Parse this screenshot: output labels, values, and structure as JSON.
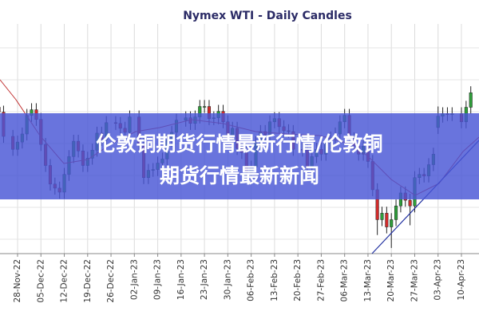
{
  "chart_data": {
    "type": "candlestick",
    "title": "Nymex WTI - Daily Candles",
    "categories": [
      null,
      null,
      null,
      null,
      "28-Nov-22",
      null,
      null,
      null,
      null,
      "05-Dec-22",
      null,
      null,
      null,
      null,
      "12-Dec-22",
      null,
      null,
      null,
      null,
      "19-Dec-22",
      null,
      null,
      null,
      null,
      "26-Dec-22",
      null,
      null,
      null,
      null,
      "02-Jan-23",
      null,
      null,
      null,
      null,
      "09-Jan-23",
      null,
      null,
      null,
      null,
      "16-Jan-23",
      null,
      null,
      null,
      null,
      "23-Jan-23",
      null,
      null,
      null,
      null,
      "30-Jan-23",
      null,
      null,
      null,
      null,
      "06-Feb-23",
      null,
      null,
      null,
      null,
      "13-Feb-23",
      null,
      null,
      null,
      null,
      "20-Feb-23",
      null,
      null,
      null,
      null,
      "27-Feb-23",
      null,
      null,
      null,
      null,
      "06-Mar-23",
      null,
      null,
      null,
      null,
      "13-Mar-23",
      null,
      null,
      null,
      null,
      "20-Mar-23",
      null,
      null,
      null,
      null,
      "27-Mar-23",
      null,
      null,
      null,
      null,
      "03-Apr-23",
      null,
      null,
      null,
      null,
      "10-Apr-23",
      null,
      null
    ],
    "open": [
      81.5,
      80.9,
      null,
      77.9,
      76.3,
      77.2,
      78.2,
      80.5,
      81.2,
      80.0,
      76.9,
      74.3,
      72.0,
      71.5,
      71.0,
      73.2,
      75.4,
      77.3,
      76.1,
      74.3,
      75.2,
      76.2,
      78.3,
      77.5,
      null,
      79.6,
      79.5,
      78.9,
      78.4,
      null,
      80.3,
      76.9,
      72.8,
      73.7,
      73.8,
      74.6,
      75.1,
      77.4,
      78.4,
      null,
      79.9,
      80.2,
      79.5,
      80.3,
      81.6,
      81.6,
      80.1,
      80.2,
      81.0,
      79.7,
      77.9,
      78.9,
      76.4,
      75.9,
      73.4,
      74.1,
      77.1,
      78.5,
      78.1,
      79.7,
      80.1,
      79.1,
      78.6,
      78.5,
      null,
      76.3,
      76.2,
      74.0,
      75.4,
      76.3,
      75.7,
      77.1,
      77.7,
      78.2,
      79.7,
      80.5,
      77.6,
      76.7,
      75.7,
      76.7,
      74.8,
      71.3,
      67.6,
      68.4,
      66.7,
      67.6,
      69.3,
      70.9,
      70.0,
      69.3,
      72.8,
      73.2,
      73.0,
      74.4,
      79.0,
      80.4,
      80.7,
      80.6,
      null,
      80.7,
      79.7,
      81.5
    ],
    "high": [
      82.3,
      81.7,
      null,
      78.7,
      78.0,
      79.0,
      81.3,
      82.0,
      82.0,
      80.8,
      77.7,
      75.1,
      72.8,
      72.3,
      74.0,
      76.2,
      78.1,
      78.1,
      76.9,
      76.0,
      77.0,
      79.1,
      79.1,
      80.4,
      null,
      80.4,
      80.3,
      79.7,
      81.1,
      null,
      81.1,
      77.7,
      74.5,
      74.6,
      75.4,
      75.9,
      78.2,
      79.2,
      80.7,
      null,
      81.0,
      81.0,
      81.1,
      82.4,
      82.4,
      82.4,
      81.0,
      81.8,
      81.8,
      80.5,
      79.7,
      79.7,
      77.2,
      76.7,
      74.9,
      77.9,
      79.3,
      79.3,
      80.5,
      80.9,
      80.9,
      79.9,
      79.4,
      79.3,
      null,
      77.1,
      77.0,
      76.2,
      77.1,
      77.1,
      77.9,
      78.5,
      79.0,
      80.5,
      81.3,
      81.3,
      78.4,
      77.5,
      77.5,
      77.5,
      75.6,
      72.1,
      69.2,
      69.2,
      68.4,
      70.1,
      71.7,
      71.7,
      70.8,
      73.6,
      74.0,
      74.0,
      75.2,
      76.5,
      81.6,
      81.5,
      81.5,
      81.5,
      null,
      81.5,
      82.3,
      84.1
    ],
    "low": [
      80.1,
      77.1,
      null,
      75.5,
      75.5,
      76.4,
      77.4,
      79.7,
      79.2,
      76.1,
      73.5,
      71.2,
      70.7,
      70.2,
      70.2,
      72.4,
      74.6,
      75.3,
      73.5,
      73.5,
      74.4,
      75.4,
      76.7,
      76.7,
      null,
      78.7,
      78.1,
      77.6,
      77.6,
      null,
      76.1,
      72.0,
      72.0,
      72.9,
      73.0,
      73.8,
      74.3,
      76.6,
      77.6,
      null,
      79.1,
      78.7,
      78.7,
      79.5,
      80.8,
      79.3,
      79.3,
      79.4,
      78.9,
      77.1,
      77.1,
      75.6,
      75.1,
      72.6,
      72.6,
      73.3,
      76.3,
      77.3,
      77.3,
      78.9,
      78.3,
      77.8,
      77.7,
      75.5,
      null,
      75.4,
      73.2,
      73.2,
      74.6,
      74.9,
      74.9,
      76.3,
      76.9,
      77.4,
      78.9,
      76.8,
      75.9,
      74.9,
      74.9,
      74.0,
      70.5,
      65.7,
      66.8,
      65.9,
      64.1,
      66.8,
      68.5,
      69.2,
      66.9,
      68.5,
      72.0,
      72.2,
      72.2,
      73.6,
      78.2,
      79.6,
      79.8,
      79.8,
      null,
      78.9,
      78.9,
      80.7
    ],
    "close": [
      80.9,
      77.9,
      null,
      76.3,
      77.2,
      78.2,
      80.5,
      81.2,
      80.0,
      76.9,
      74.3,
      72.0,
      71.5,
      71.0,
      73.2,
      75.4,
      77.3,
      76.1,
      74.3,
      75.2,
      76.2,
      78.3,
      77.5,
      79.6,
      null,
      79.5,
      78.9,
      78.4,
      80.3,
      null,
      76.9,
      72.8,
      73.7,
      73.8,
      74.6,
      75.1,
      77.4,
      78.4,
      79.9,
      null,
      80.2,
      79.5,
      80.3,
      81.6,
      81.6,
      80.1,
      80.2,
      81.0,
      79.7,
      77.9,
      78.9,
      76.4,
      75.9,
      73.4,
      74.1,
      77.1,
      78.5,
      78.1,
      79.7,
      80.1,
      79.1,
      78.6,
      78.5,
      76.3,
      null,
      76.2,
      74.0,
      75.4,
      76.3,
      75.7,
      77.1,
      77.7,
      78.2,
      79.7,
      80.5,
      77.6,
      76.7,
      75.7,
      76.7,
      74.8,
      71.3,
      67.6,
      68.4,
      66.7,
      67.6,
      69.3,
      70.9,
      70.0,
      69.3,
      72.8,
      73.2,
      73.0,
      74.4,
      75.7,
      80.4,
      80.7,
      80.6,
      80.7,
      null,
      79.7,
      81.5,
      83.3
    ],
    "up_color": "#2e9e3a",
    "down_color": "#d42a2a",
    "ylim": [
      63.4,
      92.6
    ],
    "grid": true
  },
  "overlay": {
    "lines": [
      "伦敦铜期货行情最新行情/伦敦铜",
      "期货行情最新新闻"
    ]
  }
}
